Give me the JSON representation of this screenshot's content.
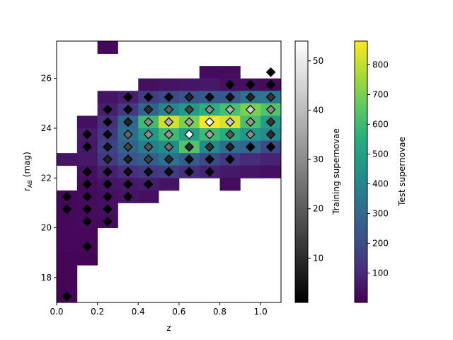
{
  "chart_data": {
    "type": "heatmap",
    "xlabel": "z",
    "ylabel_main": "r",
    "ylabel_sub": "AB",
    "ylabel_unit": " (mag)",
    "xlim": [
      0.0,
      1.1
    ],
    "ylim": [
      17.0,
      27.5
    ],
    "xticks": [
      {
        "v": 0.0,
        "label": "0.0"
      },
      {
        "v": 0.2,
        "label": "0.2"
      },
      {
        "v": 0.4,
        "label": "0.4"
      },
      {
        "v": 0.6,
        "label": "0.6"
      },
      {
        "v": 0.8,
        "label": "0.8"
      },
      {
        "v": 1.0,
        "label": "1.0"
      }
    ],
    "yticks": [
      {
        "v": 18,
        "label": "18"
      },
      {
        "v": 20,
        "label": "20"
      },
      {
        "v": 22,
        "label": "22"
      },
      {
        "v": 24,
        "label": "24"
      },
      {
        "v": 26,
        "label": "26"
      }
    ],
    "bin_dz": 0.1,
    "bin_dmag": 0.5,
    "test_colorbar": {
      "label": "Test supernovae",
      "range": [
        1,
        880
      ],
      "colormap": "viridis",
      "ticks": [
        {
          "v": 100,
          "label": "100"
        },
        {
          "v": 200,
          "label": "200"
        },
        {
          "v": 300,
          "label": "300"
        },
        {
          "v": 400,
          "label": "400"
        },
        {
          "v": 500,
          "label": "500"
        },
        {
          "v": 600,
          "label": "600"
        },
        {
          "v": 700,
          "label": "700"
        },
        {
          "v": 800,
          "label": "800"
        }
      ]
    },
    "training_colorbar": {
      "label": "Training supernovae",
      "range": [
        1,
        54
      ],
      "colormap": "gray",
      "ticks": [
        {
          "v": 10,
          "label": "10"
        },
        {
          "v": 20,
          "label": "20"
        },
        {
          "v": 30,
          "label": "30"
        },
        {
          "v": 40,
          "label": "40"
        },
        {
          "v": 50,
          "label": "50"
        }
      ]
    },
    "test_bins": [
      [
        0.2,
        27.0,
        20
      ],
      [
        0.7,
        26.0,
        30
      ],
      [
        0.8,
        26.0,
        30
      ],
      [
        0.4,
        25.5,
        40
      ],
      [
        0.5,
        25.5,
        50
      ],
      [
        0.6,
        25.5,
        55
      ],
      [
        0.7,
        25.5,
        60
      ],
      [
        0.8,
        25.5,
        40
      ],
      [
        0.9,
        25.5,
        40
      ],
      [
        1.0,
        25.5,
        30
      ],
      [
        0.2,
        25.0,
        50
      ],
      [
        0.3,
        25.0,
        80
      ],
      [
        0.4,
        25.0,
        160
      ],
      [
        0.5,
        25.0,
        200
      ],
      [
        0.6,
        25.0,
        230
      ],
      [
        0.7,
        25.0,
        250
      ],
      [
        0.8,
        25.0,
        250
      ],
      [
        0.9,
        25.0,
        340
      ],
      [
        1.0,
        25.0,
        350
      ],
      [
        0.2,
        24.5,
        80
      ],
      [
        0.3,
        24.5,
        150
      ],
      [
        0.4,
        24.5,
        280
      ],
      [
        0.5,
        24.5,
        400
      ],
      [
        0.6,
        24.5,
        480
      ],
      [
        0.7,
        24.5,
        560
      ],
      [
        0.8,
        24.5,
        620
      ],
      [
        0.9,
        24.5,
        700
      ],
      [
        1.0,
        24.5,
        640
      ],
      [
        0.1,
        24.0,
        40
      ],
      [
        0.2,
        24.0,
        120
      ],
      [
        0.3,
        24.0,
        300
      ],
      [
        0.4,
        24.0,
        600
      ],
      [
        0.5,
        24.0,
        820
      ],
      [
        0.6,
        24.0,
        700
      ],
      [
        0.7,
        24.0,
        880
      ],
      [
        0.8,
        24.0,
        830
      ],
      [
        0.9,
        24.0,
        620
      ],
      [
        1.0,
        24.0,
        490
      ],
      [
        0.1,
        23.5,
        70
      ],
      [
        0.2,
        23.5,
        150
      ],
      [
        0.3,
        23.5,
        320
      ],
      [
        0.4,
        23.5,
        480
      ],
      [
        0.5,
        23.5,
        600
      ],
      [
        0.6,
        23.5,
        500
      ],
      [
        0.7,
        23.5,
        600
      ],
      [
        0.8,
        23.5,
        550
      ],
      [
        0.9,
        23.5,
        470
      ],
      [
        1.0,
        23.5,
        420
      ],
      [
        0.1,
        23.0,
        60
      ],
      [
        0.2,
        23.0,
        180
      ],
      [
        0.3,
        23.0,
        280
      ],
      [
        0.4,
        23.0,
        380
      ],
      [
        0.5,
        23.0,
        440
      ],
      [
        0.6,
        23.0,
        640
      ],
      [
        0.7,
        23.0,
        420
      ],
      [
        0.8,
        23.0,
        320
      ],
      [
        0.9,
        23.0,
        300
      ],
      [
        1.0,
        23.0,
        200
      ],
      [
        0.0,
        22.5,
        50
      ],
      [
        0.1,
        22.5,
        60
      ],
      [
        0.2,
        22.5,
        150
      ],
      [
        0.3,
        22.5,
        230
      ],
      [
        0.4,
        22.5,
        270
      ],
      [
        0.5,
        22.5,
        330
      ],
      [
        0.6,
        22.5,
        270
      ],
      [
        0.7,
        22.5,
        200
      ],
      [
        0.8,
        22.5,
        150
      ],
      [
        0.9,
        22.5,
        110
      ],
      [
        1.0,
        22.5,
        90
      ],
      [
        0.1,
        22.0,
        40
      ],
      [
        0.2,
        22.0,
        80
      ],
      [
        0.3,
        22.0,
        120
      ],
      [
        0.4,
        22.0,
        150
      ],
      [
        0.5,
        22.0,
        160
      ],
      [
        0.6,
        22.0,
        120
      ],
      [
        0.7,
        22.0,
        90
      ],
      [
        0.8,
        22.0,
        60
      ],
      [
        0.9,
        22.0,
        50
      ],
      [
        1.0,
        22.0,
        40
      ],
      [
        0.1,
        21.5,
        30
      ],
      [
        0.2,
        21.5,
        50
      ],
      [
        0.3,
        21.5,
        60
      ],
      [
        0.4,
        21.5,
        70
      ],
      [
        0.5,
        21.5,
        50
      ],
      [
        0.8,
        21.5,
        30
      ],
      [
        0.0,
        21.0,
        20
      ],
      [
        0.1,
        21.0,
        30
      ],
      [
        0.2,
        21.0,
        40
      ],
      [
        0.3,
        21.0,
        50
      ],
      [
        0.4,
        21.0,
        40
      ],
      [
        0.0,
        20.5,
        20
      ],
      [
        0.1,
        20.5,
        30
      ],
      [
        0.2,
        20.5,
        40
      ],
      [
        0.0,
        20.0,
        20
      ],
      [
        0.1,
        20.0,
        30
      ],
      [
        0.2,
        20.0,
        30
      ],
      [
        0.0,
        19.5,
        20
      ],
      [
        0.1,
        19.5,
        20
      ],
      [
        0.0,
        19.0,
        20
      ],
      [
        0.1,
        19.0,
        20
      ],
      [
        0.0,
        18.5,
        10
      ],
      [
        0.1,
        18.5,
        10
      ],
      [
        0.0,
        18.0,
        10
      ],
      [
        0.0,
        17.5,
        10
      ],
      [
        0.0,
        17.0,
        10
      ]
    ],
    "training_points": [
      [
        1.05,
        26.25,
        1
      ],
      [
        0.85,
        25.75,
        1
      ],
      [
        0.95,
        25.75,
        1
      ],
      [
        1.05,
        25.75,
        2
      ],
      [
        0.35,
        25.25,
        1
      ],
      [
        0.45,
        25.25,
        2
      ],
      [
        0.55,
        25.25,
        3
      ],
      [
        0.65,
        25.25,
        8
      ],
      [
        0.75,
        25.25,
        4
      ],
      [
        0.85,
        25.25,
        5
      ],
      [
        0.95,
        25.25,
        8
      ],
      [
        1.05,
        25.25,
        12
      ],
      [
        0.25,
        24.75,
        1
      ],
      [
        0.35,
        24.75,
        3
      ],
      [
        0.45,
        24.75,
        10
      ],
      [
        0.55,
        24.75,
        20
      ],
      [
        0.65,
        24.75,
        15
      ],
      [
        0.75,
        24.75,
        30
      ],
      [
        0.85,
        24.75,
        38
      ],
      [
        0.95,
        24.75,
        44
      ],
      [
        1.05,
        24.75,
        30
      ],
      [
        0.25,
        24.25,
        2
      ],
      [
        0.35,
        24.25,
        8
      ],
      [
        0.45,
        24.25,
        30
      ],
      [
        0.55,
        24.25,
        38
      ],
      [
        0.65,
        24.25,
        35
      ],
      [
        0.75,
        24.25,
        52
      ],
      [
        0.85,
        24.25,
        42
      ],
      [
        0.95,
        24.25,
        32
      ],
      [
        1.05,
        24.25,
        12
      ],
      [
        0.15,
        23.75,
        1
      ],
      [
        0.25,
        23.75,
        3
      ],
      [
        0.35,
        23.75,
        22
      ],
      [
        0.45,
        23.75,
        30
      ],
      [
        0.55,
        23.75,
        32
      ],
      [
        0.65,
        23.75,
        54
      ],
      [
        0.75,
        23.75,
        35
      ],
      [
        0.85,
        23.75,
        20
      ],
      [
        0.95,
        23.75,
        30
      ],
      [
        1.05,
        23.75,
        10
      ],
      [
        0.15,
        23.25,
        2
      ],
      [
        0.25,
        23.25,
        5
      ],
      [
        0.35,
        23.25,
        15
      ],
      [
        0.45,
        23.25,
        18
      ],
      [
        0.55,
        23.25,
        24
      ],
      [
        0.65,
        23.25,
        10
      ],
      [
        0.75,
        23.25,
        12
      ],
      [
        0.85,
        23.25,
        8
      ],
      [
        0.95,
        23.25,
        2
      ],
      [
        1.05,
        23.25,
        1
      ],
      [
        0.25,
        22.75,
        8
      ],
      [
        0.35,
        22.75,
        8
      ],
      [
        0.45,
        22.75,
        14
      ],
      [
        0.55,
        22.75,
        10
      ],
      [
        0.65,
        22.75,
        4
      ],
      [
        0.75,
        22.75,
        3
      ],
      [
        0.85,
        22.75,
        2
      ],
      [
        0.15,
        22.25,
        2
      ],
      [
        0.25,
        22.25,
        2
      ],
      [
        0.35,
        22.25,
        4
      ],
      [
        0.45,
        22.25,
        4
      ],
      [
        0.55,
        22.25,
        4
      ],
      [
        0.65,
        22.25,
        2
      ],
      [
        0.75,
        22.25,
        2
      ],
      [
        0.15,
        21.75,
        1
      ],
      [
        0.25,
        21.75,
        1
      ],
      [
        0.35,
        21.75,
        1
      ],
      [
        0.45,
        21.75,
        1
      ],
      [
        0.05,
        21.25,
        1
      ],
      [
        0.15,
        21.25,
        1
      ],
      [
        0.25,
        21.25,
        1
      ],
      [
        0.35,
        21.25,
        1
      ],
      [
        0.05,
        20.75,
        1
      ],
      [
        0.15,
        20.75,
        1
      ],
      [
        0.25,
        20.75,
        1
      ],
      [
        0.15,
        20.25,
        1
      ],
      [
        0.25,
        20.25,
        1
      ],
      [
        0.15,
        19.25,
        1
      ],
      [
        0.05,
        17.25,
        1
      ]
    ]
  }
}
